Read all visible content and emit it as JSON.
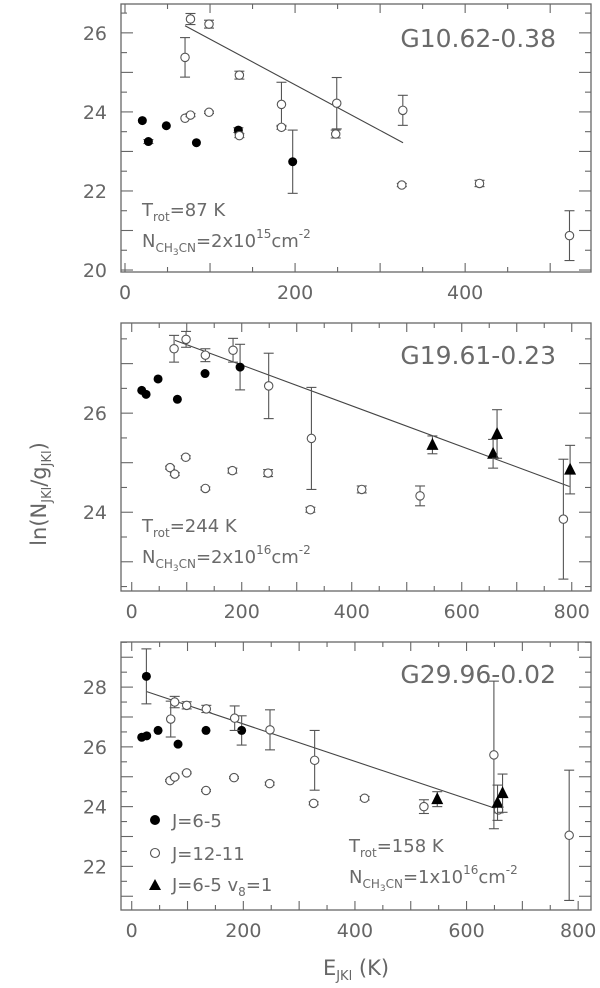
{
  "chart_data": [
    {
      "type": "scatter",
      "title": "G10.62-0.38",
      "annotation": {
        "trot": "=87 K",
        "n_value": "=2x10",
        "n_exp": "15",
        "n_unit": "cm",
        "n_unit_exp": "-2"
      },
      "xlim": [
        -4.7,
        548
      ],
      "ylim": [
        19.95,
        26.73
      ],
      "xticks": [
        0,
        200,
        400
      ],
      "xminor": 50,
      "yticks": [
        20,
        22,
        24,
        26
      ],
      "yminor": 0.5,
      "fit": [
        [
          70.6,
          26.18
        ],
        [
          327,
          23.22
        ]
      ],
      "series": [
        {
          "name": "J=6-5",
          "marker": "filled-circle",
          "points": [
            [
              20.4,
              23.78,
              0
            ],
            [
              27.5,
              23.25,
              0.05
            ],
            [
              48.6,
              23.65,
              0
            ],
            [
              84,
              23.22,
              0
            ],
            [
              133.3,
              23.54,
              0.06
            ],
            [
              197.2,
              22.74,
              0.8
            ]
          ]
        },
        {
          "name": "J=12-11",
          "marker": "open-circle",
          "points": [
            [
              77,
              26.35,
              0.14
            ],
            [
              98.8,
              26.22,
              0.1
            ],
            [
              70.6,
              25.38,
              0.5
            ],
            [
              134.5,
              24.93,
              0.1
            ],
            [
              184,
              24.19,
              0.56
            ],
            [
              249,
              24.22,
              0.65
            ],
            [
              326.7,
              24.04,
              0.38
            ],
            [
              70.6,
              23.84,
              0
            ],
            [
              77,
              23.92,
              0.04
            ],
            [
              98.8,
              23.99,
              0.03
            ],
            [
              134.5,
              23.4,
              0.05
            ],
            [
              184,
              23.61,
              0.05
            ],
            [
              247.8,
              23.44,
              0.1
            ],
            [
              325.5,
              22.15,
              0.04
            ],
            [
              416.9,
              22.19,
              0.08
            ],
            [
              522.7,
              20.87,
              0.63
            ]
          ]
        }
      ]
    },
    {
      "type": "scatter",
      "title": "G19.61-0.23",
      "annotation": {
        "trot": "=244 K",
        "n_value": "=2x10",
        "n_exp": "16",
        "n_unit": "cm",
        "n_unit_exp": "-2"
      },
      "xlim": [
        -19.5,
        835
      ],
      "ylim": [
        22.41,
        27.82
      ],
      "xticks": [
        0,
        200,
        400,
        600,
        800
      ],
      "xminor": 50,
      "yticks": [
        24,
        26
      ],
      "yminor": 0.5,
      "fit": [
        [
          78.8,
          27.47
        ],
        [
          795.8,
          24.52
        ]
      ],
      "series": [
        {
          "name": "J=6-5",
          "marker": "filled-circle",
          "points": [
            [
              18.2,
              26.46,
              0
            ],
            [
              26.1,
              26.38,
              0
            ],
            [
              47.9,
              26.69,
              0
            ],
            [
              83,
              26.28,
              0
            ],
            [
              133.3,
              26.8,
              0
            ],
            [
              197,
              26.93,
              0.46
            ]
          ]
        },
        {
          "name": "J=12-11",
          "marker": "open-circle",
          "points": [
            [
              77,
              27.3,
              0.27
            ],
            [
              98.8,
              27.49,
              0.16
            ],
            [
              133.9,
              27.17,
              0.13
            ],
            [
              184.2,
              27.27,
              0.24
            ],
            [
              249,
              26.55,
              0.66
            ],
            [
              326.7,
              25.49,
              1.03
            ],
            [
              784.8,
              23.86,
              1.21
            ],
            [
              69.7,
              24.9,
              0.03
            ],
            [
              78.2,
              24.77,
              0.03
            ],
            [
              98.2,
              25.11,
              0.03
            ],
            [
              133.9,
              24.48,
              0.03
            ],
            [
              183,
              24.84,
              0.05
            ],
            [
              247.9,
              24.79,
              0.07
            ],
            [
              324.8,
              24.05,
              0.05
            ],
            [
              418.2,
              24.46,
              0.07
            ],
            [
              524.2,
              24.33,
              0.2
            ]
          ]
        },
        {
          "name": "J=6-5 v8=1",
          "marker": "filled-triangle",
          "points": [
            [
              546.7,
              25.36,
              0.18
            ],
            [
              657,
              25.18,
              0.29
            ],
            [
              664.2,
              25.58,
              0.49
            ],
            [
              797,
              24.86,
              0.49
            ]
          ]
        }
      ]
    },
    {
      "type": "scatter",
      "title": "G29.96-0.02",
      "annotation": {
        "trot": "=158 K",
        "n_value": "=1x10",
        "n_exp": "16",
        "n_unit": "cm",
        "n_unit_exp": "-2"
      },
      "xlim": [
        -19.2,
        823
      ],
      "ylim": [
        20.54,
        29.51
      ],
      "xticks": [
        0,
        200,
        400,
        600,
        800
      ],
      "xminor": 50,
      "yticks": [
        22,
        24,
        26,
        28
      ],
      "yminor": 0.5,
      "fit": [
        [
          26.9,
          27.85
        ],
        [
          659.7,
          23.89
        ]
      ],
      "legend": {
        "placement": "bottom-left",
        "entries": [
          {
            "label": "J=6-5",
            "marker": "filled-circle"
          },
          {
            "label": "J=12-11",
            "marker": "open-circle"
          },
          {
            "label": "J=6-5 v",
            "sub": "8",
            "tail": "=1",
            "marker": "filled-triangle"
          }
        ]
      },
      "series": [
        {
          "name": "J=6-5",
          "marker": "filled-circle",
          "points": [
            [
              26.3,
              28.36,
              0.92
            ],
            [
              17.9,
              26.32,
              0
            ],
            [
              26.9,
              26.37,
              0
            ],
            [
              47.2,
              26.55,
              0
            ],
            [
              83,
              26.09,
              0
            ],
            [
              133.1,
              26.55,
              0
            ],
            [
              197,
              26.55,
              0.49
            ]
          ]
        },
        {
          "name": "J=12-11",
          "marker": "open-circle",
          "points": [
            [
              69.9,
              26.93,
              0.6
            ],
            [
              77,
              27.5,
              0.19
            ],
            [
              98.5,
              27.39,
              0.12
            ],
            [
              133.7,
              27.27,
              0.12
            ],
            [
              184.5,
              26.96,
              0.41
            ],
            [
              247.8,
              26.57,
              0.67
            ],
            [
              327.8,
              25.55,
              1.0
            ],
            [
              649,
              25.73,
              2.47
            ],
            [
              783.9,
              23.04,
              2.18
            ],
            [
              68.7,
              24.87,
              0.03
            ],
            [
              77,
              24.99,
              0.03
            ],
            [
              98.5,
              25.13,
              0.03
            ],
            [
              133.1,
              24.54,
              0.03
            ],
            [
              183.3,
              24.97,
              0.03
            ],
            [
              247.2,
              24.77,
              0.05
            ],
            [
              326,
              24.11,
              0.05
            ],
            [
              417.3,
              24.28,
              0.06
            ],
            [
              523.6,
              24.0,
              0.23
            ],
            [
              657.3,
              23.89,
              0.1
            ]
          ]
        },
        {
          "name": "J=6-5 v8=1",
          "marker": "filled-triangle",
          "points": [
            [
              547.5,
              24.25,
              0.25
            ],
            [
              655.5,
              24.13,
              0.59
            ],
            [
              664.5,
              24.45,
              0.64
            ]
          ]
        }
      ]
    }
  ],
  "axes": {
    "ylabel_main": "ln(N",
    "ylabel_sub1": "JKl",
    "ylabel_mid": "/g",
    "ylabel_sub2": "JKl",
    "ylabel_end": ")",
    "xlabel_main": "E",
    "xlabel_sub": "JKl",
    "xlabel_end": " (K)"
  },
  "labels": {
    "t": "T",
    "rot": "rot",
    "n": "N",
    "ch": "CH",
    "three": "3",
    "cn": "CN"
  }
}
